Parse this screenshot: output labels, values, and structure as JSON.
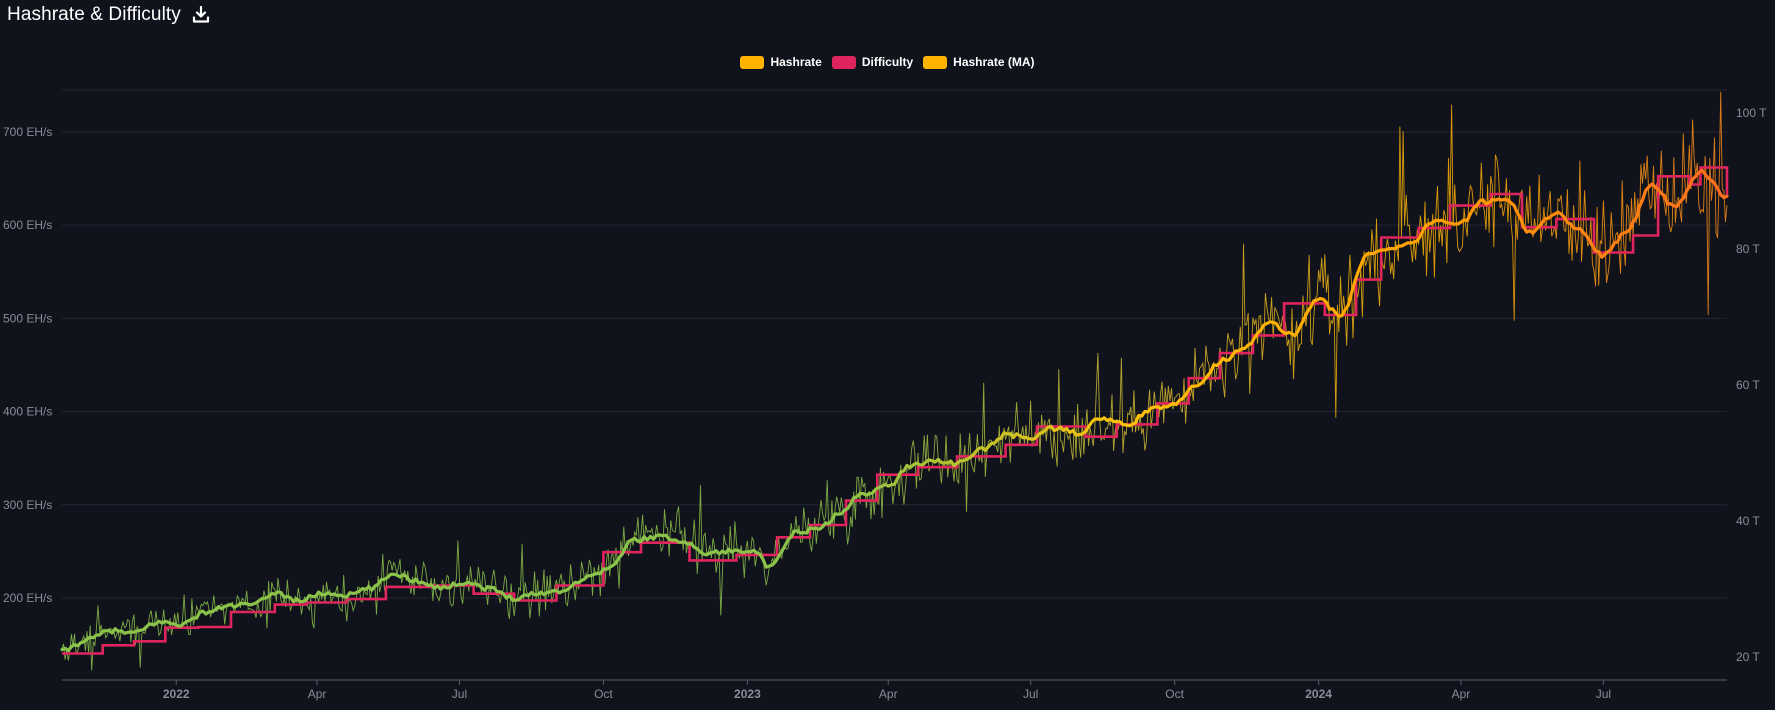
{
  "header": {
    "title": "Hashrate & Difficulty",
    "download_icon": "download-icon"
  },
  "legend": [
    {
      "label": "Hashrate",
      "color": "#ffb300"
    },
    {
      "label": "Difficulty",
      "color": "#e0245e"
    },
    {
      "label": "Hashrate (MA)",
      "color": "#ffb300"
    }
  ],
  "colors": {
    "background": "#11131c",
    "grid": "#222533",
    "early": "#8bc34a",
    "mid": "#ffc107",
    "late": "#ff7a1a",
    "difficulty": "#e0245e"
  },
  "chart_data": {
    "type": "line",
    "title": "Hashrate & Difficulty",
    "x_range": [
      "2021-10-20",
      "2024-09-18"
    ],
    "x_ticks": [
      {
        "label": "2022",
        "date": "2022-01-01",
        "bold": true
      },
      {
        "label": "Apr",
        "date": "2022-04-01"
      },
      {
        "label": "Jul",
        "date": "2022-07-01"
      },
      {
        "label": "Oct",
        "date": "2022-10-01"
      },
      {
        "label": "2023",
        "date": "2023-01-01",
        "bold": true
      },
      {
        "label": "Apr",
        "date": "2023-04-01"
      },
      {
        "label": "Jul",
        "date": "2023-07-01"
      },
      {
        "label": "Oct",
        "date": "2023-10-01"
      },
      {
        "label": "2024",
        "date": "2024-01-01",
        "bold": true
      },
      {
        "label": "Apr",
        "date": "2024-04-01"
      },
      {
        "label": "Jul",
        "date": "2024-07-01"
      }
    ],
    "y_left": {
      "unit": "EH/s",
      "range": [
        112,
        745
      ],
      "ticks": [
        {
          "label": "200 EH/s",
          "value": 200
        },
        {
          "label": "300 EH/s",
          "value": 300
        },
        {
          "label": "400 EH/s",
          "value": 400
        },
        {
          "label": "500 EH/s",
          "value": 500
        },
        {
          "label": "600 EH/s",
          "value": 600
        },
        {
          "label": "700 EH/s",
          "value": 700
        }
      ]
    },
    "y_right": {
      "unit": "T",
      "range": [
        16.6,
        103.4
      ],
      "ticks": [
        {
          "label": "20 T",
          "value": 20
        },
        {
          "label": "40 T",
          "value": 40
        },
        {
          "label": "60 T",
          "value": 60
        },
        {
          "label": "80 T",
          "value": 80
        },
        {
          "label": "100 T",
          "value": 100
        }
      ]
    },
    "series": [
      {
        "name": "Hashrate (MA)",
        "axis": "left",
        "points": [
          [
            "2021-10-20",
            143
          ],
          [
            "2021-11-05",
            155
          ],
          [
            "2021-11-20",
            165
          ],
          [
            "2021-12-05",
            162
          ],
          [
            "2021-12-20",
            174
          ],
          [
            "2022-01-05",
            172
          ],
          [
            "2022-01-20",
            185
          ],
          [
            "2022-02-05",
            192
          ],
          [
            "2022-02-20",
            193
          ],
          [
            "2022-03-05",
            206
          ],
          [
            "2022-03-20",
            197
          ],
          [
            "2022-04-05",
            205
          ],
          [
            "2022-04-20",
            203
          ],
          [
            "2022-05-05",
            210
          ],
          [
            "2022-05-20",
            226
          ],
          [
            "2022-06-05",
            218
          ],
          [
            "2022-06-20",
            211
          ],
          [
            "2022-07-05",
            217
          ],
          [
            "2022-07-20",
            210
          ],
          [
            "2022-08-05",
            200
          ],
          [
            "2022-08-20",
            205
          ],
          [
            "2022-09-05",
            208
          ],
          [
            "2022-09-20",
            222
          ],
          [
            "2022-10-05",
            232
          ],
          [
            "2022-10-20",
            262
          ],
          [
            "2022-11-05",
            266
          ],
          [
            "2022-11-20",
            262
          ],
          [
            "2022-12-05",
            248
          ],
          [
            "2022-12-20",
            250
          ],
          [
            "2023-01-05",
            252
          ],
          [
            "2023-01-15",
            232
          ],
          [
            "2023-02-01",
            270
          ],
          [
            "2023-02-15",
            274
          ],
          [
            "2023-03-01",
            290
          ],
          [
            "2023-03-15",
            312
          ],
          [
            "2023-04-01",
            320
          ],
          [
            "2023-04-15",
            342
          ],
          [
            "2023-05-01",
            348
          ],
          [
            "2023-05-15",
            344
          ],
          [
            "2023-06-01",
            360
          ],
          [
            "2023-06-15",
            375
          ],
          [
            "2023-07-01",
            372
          ],
          [
            "2023-07-15",
            382
          ],
          [
            "2023-08-01",
            377
          ],
          [
            "2023-08-15",
            393
          ],
          [
            "2023-09-01",
            385
          ],
          [
            "2023-09-15",
            402
          ],
          [
            "2023-10-01",
            407
          ],
          [
            "2023-10-15",
            430
          ],
          [
            "2023-11-01",
            455
          ],
          [
            "2023-11-15",
            470
          ],
          [
            "2023-12-01",
            495
          ],
          [
            "2023-12-15",
            482
          ],
          [
            "2024-01-01",
            522
          ],
          [
            "2024-01-15",
            502
          ],
          [
            "2024-02-01",
            568
          ],
          [
            "2024-02-15",
            575
          ],
          [
            "2024-03-01",
            582
          ],
          [
            "2024-03-15",
            605
          ],
          [
            "2024-04-01",
            602
          ],
          [
            "2024-04-15",
            625
          ],
          [
            "2024-05-01",
            628
          ],
          [
            "2024-05-15",
            593
          ],
          [
            "2024-06-01",
            612
          ],
          [
            "2024-06-15",
            595
          ],
          [
            "2024-07-01",
            567
          ],
          [
            "2024-07-15",
            590
          ],
          [
            "2024-08-01",
            645
          ],
          [
            "2024-08-15",
            620
          ],
          [
            "2024-09-01",
            658
          ],
          [
            "2024-09-18",
            630
          ]
        ]
      },
      {
        "name": "Difficulty",
        "axis": "right",
        "steps": [
          [
            "2021-10-20",
            20.5
          ],
          [
            "2021-11-15",
            21.7
          ],
          [
            "2021-12-05",
            22.3
          ],
          [
            "2021-12-25",
            24.3
          ],
          [
            "2022-01-15",
            24.4
          ],
          [
            "2022-02-05",
            26.6
          ],
          [
            "2022-03-05",
            27.7
          ],
          [
            "2022-03-25",
            28.0
          ],
          [
            "2022-04-20",
            28.5
          ],
          [
            "2022-05-15",
            30.3
          ],
          [
            "2022-06-15",
            30.5
          ],
          [
            "2022-07-10",
            29.3
          ],
          [
            "2022-08-05",
            28.3
          ],
          [
            "2022-09-01",
            30.5
          ],
          [
            "2022-10-01",
            35.4
          ],
          [
            "2022-10-25",
            36.8
          ],
          [
            "2022-11-25",
            34.2
          ],
          [
            "2022-12-25",
            35.0
          ],
          [
            "2023-01-20",
            37.6
          ],
          [
            "2023-02-10",
            39.4
          ],
          [
            "2023-03-05",
            43.0
          ],
          [
            "2023-03-25",
            46.8
          ],
          [
            "2023-04-20",
            47.9
          ],
          [
            "2023-05-15",
            49.5
          ],
          [
            "2023-06-15",
            51.2
          ],
          [
            "2023-07-05",
            53.9
          ],
          [
            "2023-08-05",
            52.4
          ],
          [
            "2023-08-25",
            54.2
          ],
          [
            "2023-09-20",
            57.3
          ],
          [
            "2023-10-10",
            61.0
          ],
          [
            "2023-10-30",
            64.7
          ],
          [
            "2023-11-20",
            67.3
          ],
          [
            "2023-12-10",
            72.0
          ],
          [
            "2024-01-05",
            70.3
          ],
          [
            "2024-01-25",
            75.5
          ],
          [
            "2024-02-10",
            81.7
          ],
          [
            "2024-03-05",
            83.1
          ],
          [
            "2024-03-25",
            86.4
          ],
          [
            "2024-04-20",
            88.1
          ],
          [
            "2024-05-10",
            83.2
          ],
          [
            "2024-06-01",
            84.4
          ],
          [
            "2024-06-25",
            79.5
          ],
          [
            "2024-07-20",
            82.0
          ],
          [
            "2024-08-05",
            90.7
          ],
          [
            "2024-08-25",
            89.5
          ],
          [
            "2024-09-01",
            92.0
          ],
          [
            "2024-09-18",
            88.0
          ]
        ]
      },
      {
        "name": "Hashrate",
        "axis": "left",
        "noise_amplitude": [
          [
            0,
            30
          ],
          [
            0.45,
            55
          ],
          [
            0.72,
            90
          ],
          [
            1,
            115
          ]
        ]
      }
    ]
  }
}
